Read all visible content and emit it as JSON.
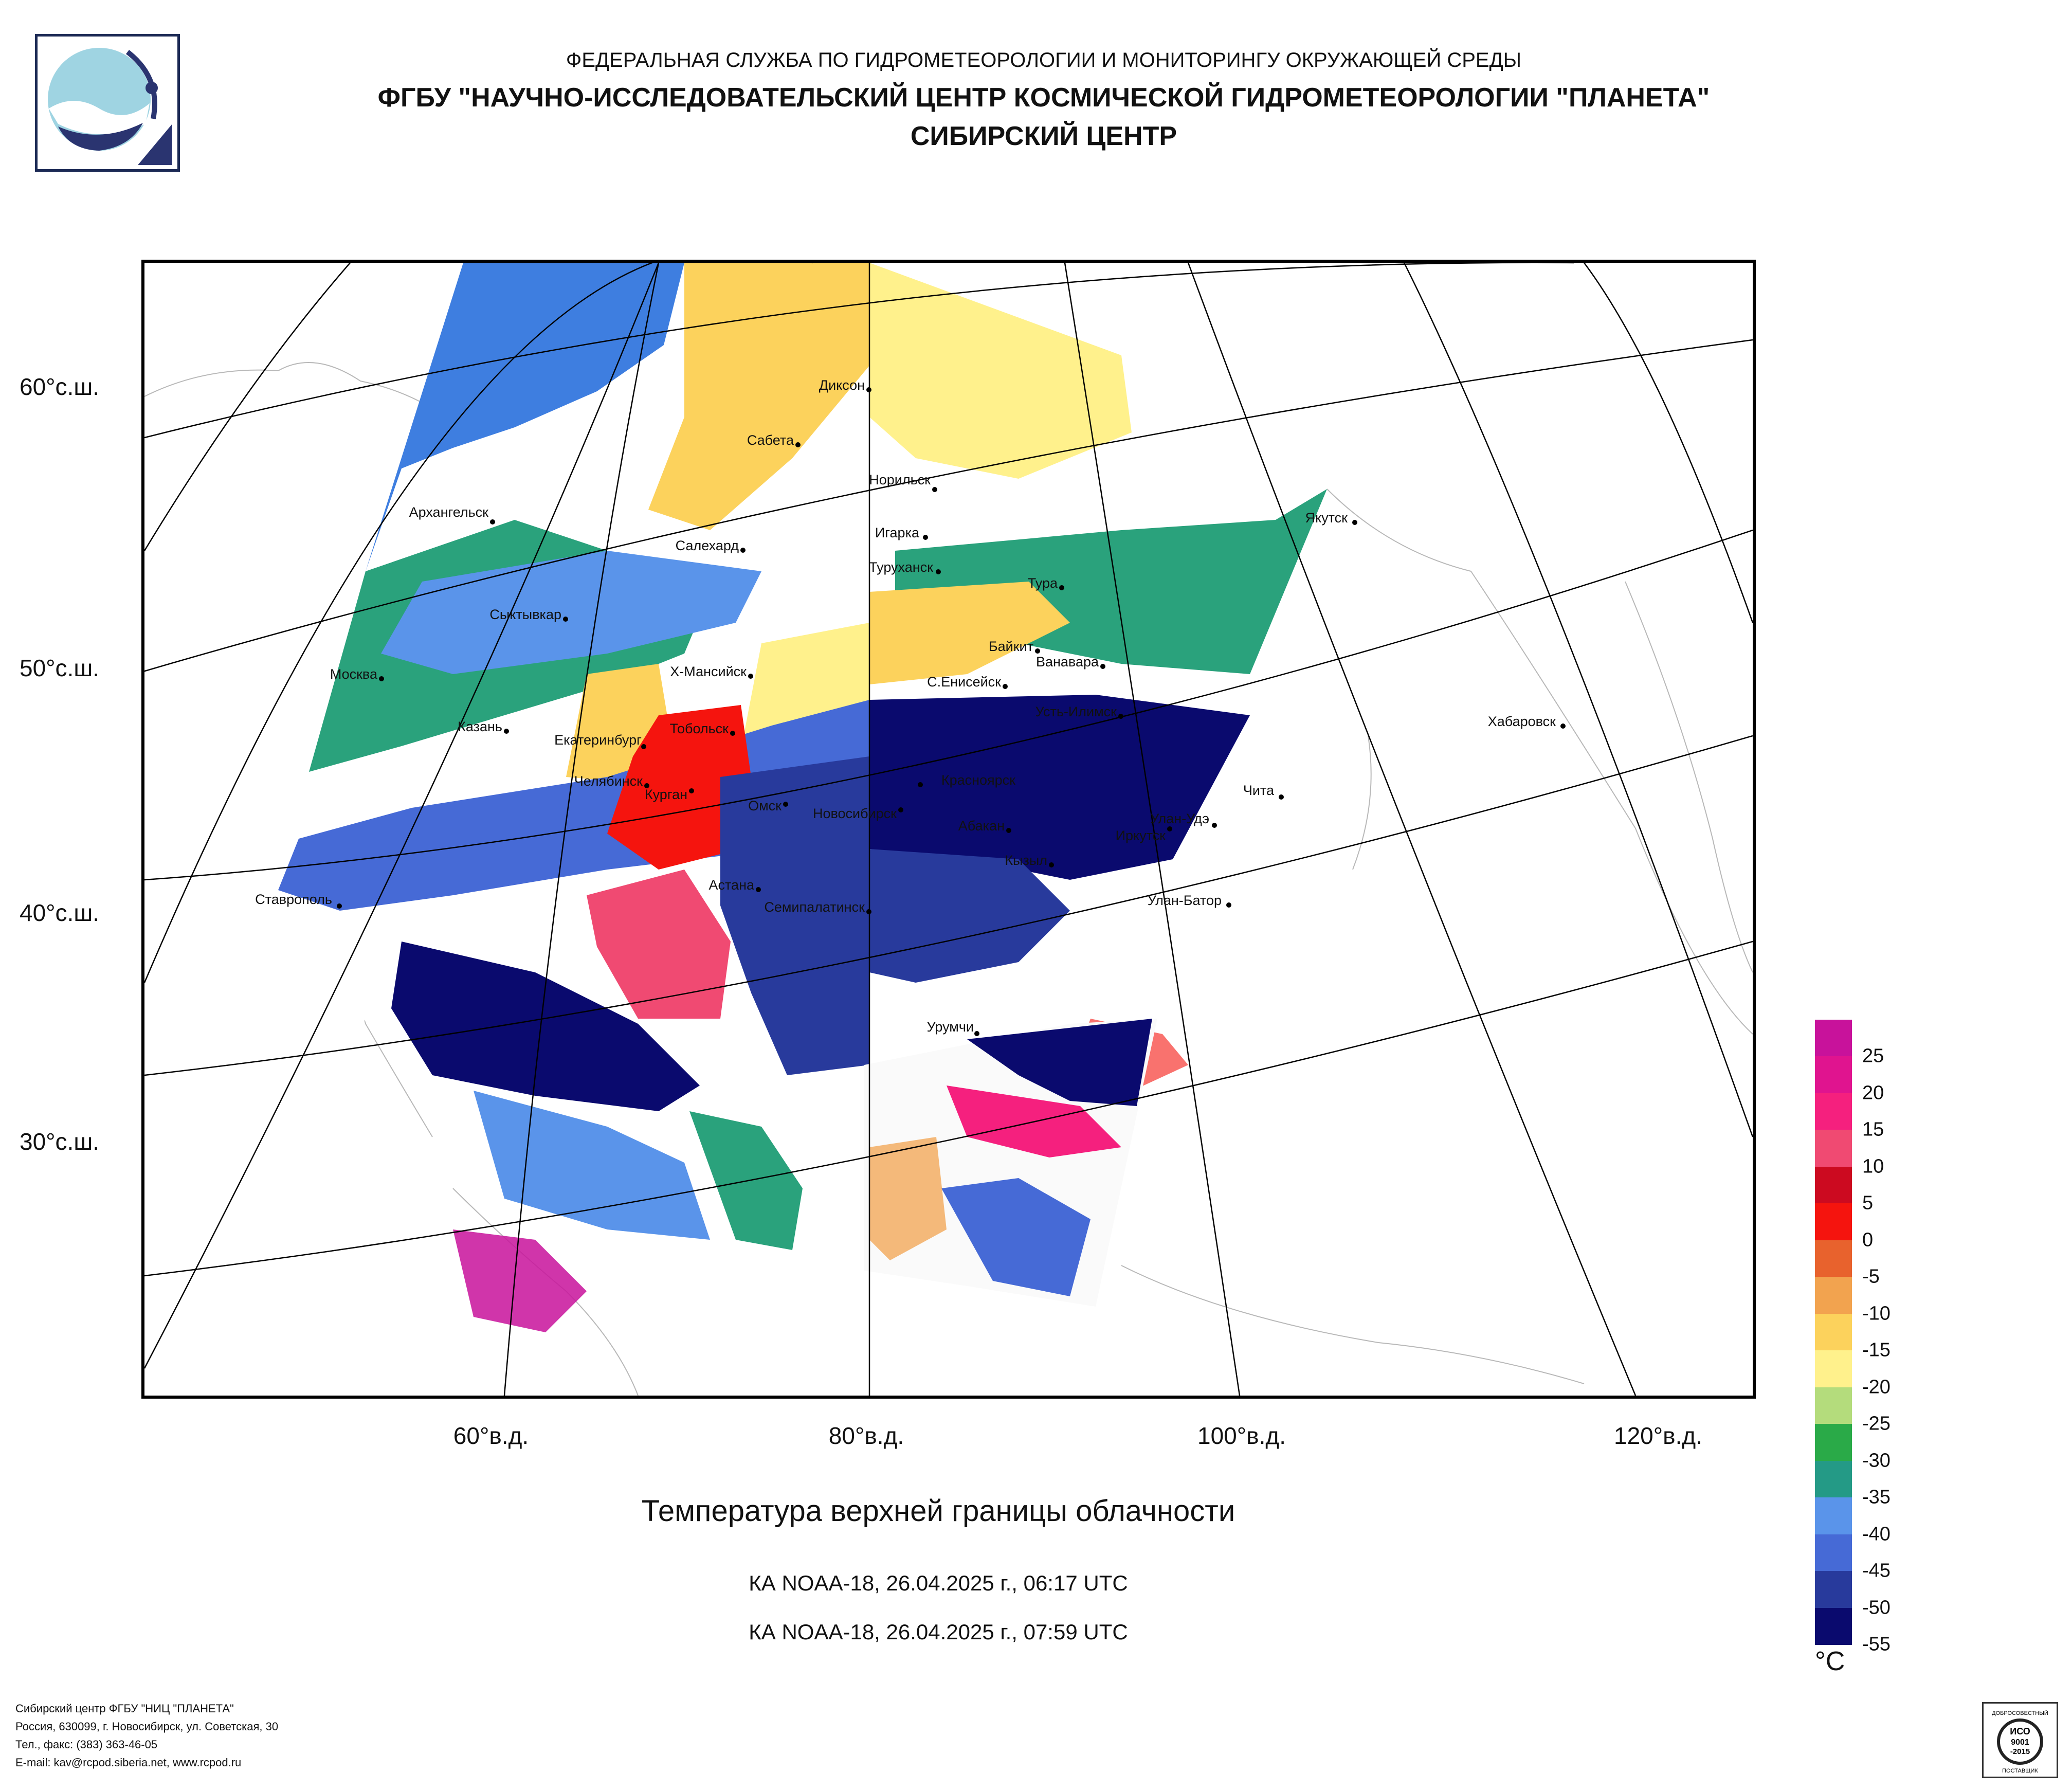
{
  "header": {
    "line1": "ФЕДЕРАЛЬНАЯ СЛУЖБА ПО ГИДРОМЕТЕОРОЛОГИИ И МОНИТОРИНГУ ОКРУЖАЮЩЕЙ СРЕДЫ",
    "line2": "ФГБУ \"НАУЧНО-ИССЛЕДОВАТЕЛЬСКИЙ ЦЕНТР КОСМИЧЕСКОЙ ГИДРОМЕТЕОРОЛОГИИ \"ПЛАНЕТА\"",
    "line3": "СИБИРСКИЙ ЦЕНТР"
  },
  "map": {
    "lat_labels": [
      "60°с.ш.",
      "50°с.ш.",
      "40°с.ш.",
      "30°с.ш."
    ],
    "lon_labels": [
      "60°в.д.",
      "80°в.д.",
      "100°в.д.",
      "120°в.д."
    ],
    "cities": [
      "Диксон",
      "Сабета",
      "Норильск",
      "Игарка",
      "Якутск",
      "Архангельск",
      "Салехард",
      "Туруханск",
      "Тура",
      "Сыктывкар",
      "Байкит",
      "Ванавара",
      "Москва",
      "Х-Мансийск",
      "С.Енисейск",
      "Усть-Илимск",
      "Казань",
      "Тобольск",
      "Хабаровск",
      "Екатеринбург",
      "Красноярск",
      "Челябинск",
      "Курган",
      "Омск",
      "Новосибирск",
      "Абакан",
      "Чита",
      "Улан-Удэ",
      "Иркутск",
      "Кызыл",
      "Ставрополь",
      "Астана",
      "Семипалатинск",
      "Улан-Батор",
      "Урумчи"
    ]
  },
  "caption": {
    "title": "Температура верхней границы облачности",
    "pass1": "КА NOAA-18, 26.04.2025 г., 06:17 UTC",
    "pass2": "КА NOAA-18, 26.04.2025 г., 07:59 UTC"
  },
  "legend": {
    "unit": "°С",
    "ticks": [
      "25",
      "20",
      "15",
      "10",
      "5",
      "0",
      "-5",
      "-10",
      "-15",
      "-20",
      "-25",
      "-30",
      "-35",
      "-40",
      "-45",
      "-50",
      "-55"
    ],
    "colors": [
      "#c8129b",
      "#e0148f",
      "#f5207e",
      "#f04a72",
      "#cc0a20",
      "#f5140e",
      "#e8622d",
      "#f2a34f",
      "#fcd25c",
      "#fff18c",
      "#b4dc7c",
      "#2aaa48",
      "#249a86",
      "#5a94ea",
      "#466ad6",
      "#283a9c",
      "#0a0a6e"
    ]
  },
  "footer": {
    "line1": "Сибирский центр ФГБУ \"НИЦ \"ПЛАНЕТА\"",
    "line2": "Россия, 630099, г. Новосибирск, ул. Советская, 30",
    "line3": "Тел., факс: (383) 363-46-05",
    "line4": "E-mail: kav@rcpod.siberia.net, www.rcpod.ru"
  },
  "certificate": {
    "line1": "ДОБРОСОВЕСТНЫЙ",
    "line2": "ИСО",
    "line3": "9001",
    "line4": "-2015",
    "line5": "ПОСТАВЩИК"
  }
}
